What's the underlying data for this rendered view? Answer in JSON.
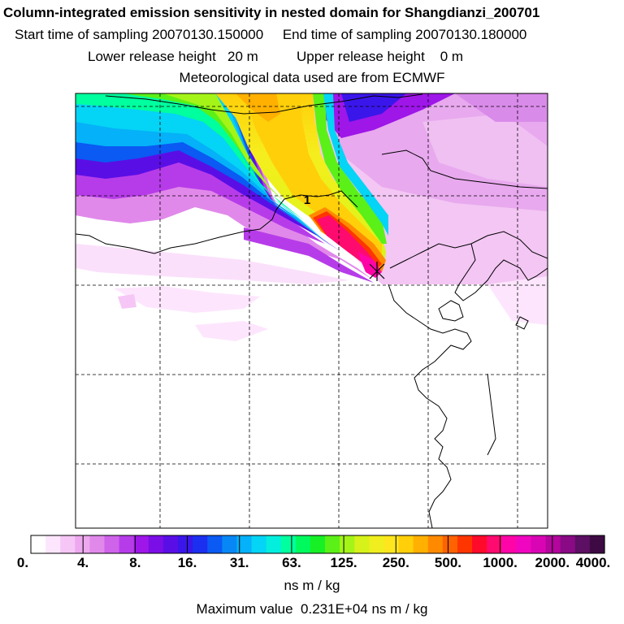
{
  "header": {
    "title": "Column-integrated emission sensitivity in nested domain for Shangdianzi_200701",
    "line2": "Start time of sampling 20070130.150000     End time of sampling 20070130.180000",
    "line3": "Lower release height   20 m          Upper release height    0 m",
    "line4": "Meteorological data used are from ECMWF"
  },
  "map": {
    "marker_label": "1"
  },
  "colorbar": {
    "tick_labels": [
      "0.",
      "4.",
      "8.",
      "16.",
      "31.",
      "63.",
      "125.",
      "250.",
      "500.",
      "1000.",
      "2000.",
      "4000."
    ],
    "units": "ns m / kg",
    "colors": [
      "#ffffff",
      "#fde6fd",
      "#f6c6f6",
      "#eea8ef",
      "#e189ea",
      "#cf63ea",
      "#b73ce9",
      "#9e16e8",
      "#7b0de6",
      "#5a0ee6",
      "#3a16ea",
      "#1b2ff0",
      "#0a5af3",
      "#0787f6",
      "#05b1f8",
      "#04d4f5",
      "#03eedd",
      "#00ff9e",
      "#00f95d",
      "#16f024",
      "#5bf017",
      "#a4f418",
      "#d6f21a",
      "#f0ee1e",
      "#fde61e",
      "#ffcf0a",
      "#ffb000",
      "#ff8a00",
      "#ff6200",
      "#ff3500",
      "#ff0a2a",
      "#ff0a6f",
      "#ff05a8",
      "#f006c0",
      "#d905b5",
      "#b4059d",
      "#8a0984",
      "#5c0f63",
      "#3e0a44"
    ]
  },
  "max_value_text": "Maximum value  0.231E+04 ns m / kg"
}
